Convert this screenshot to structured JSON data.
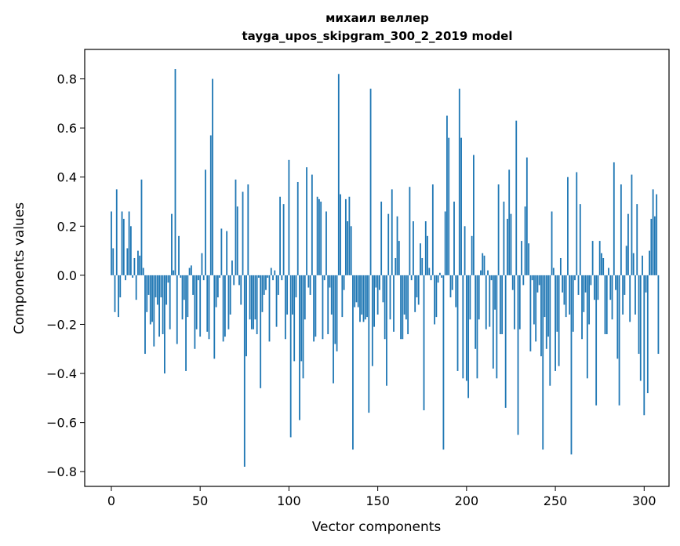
{
  "chart_data": {
    "type": "bar",
    "title_line1": "михаил веллер",
    "title_line2": "tayga_upos_skipgram_300_2_2019 model",
    "xlabel": "Vector components",
    "ylabel": "Components values",
    "xlim": [
      -15,
      314
    ],
    "ylim": [
      -0.86,
      0.92
    ],
    "xticks": [
      0,
      50,
      100,
      150,
      200,
      250,
      300
    ],
    "xtick_labels": [
      "0",
      "50",
      "100",
      "150",
      "200",
      "250",
      "300"
    ],
    "yticks": [
      -0.8,
      -0.6,
      -0.4,
      -0.2,
      0.0,
      0.2,
      0.4,
      0.6,
      0.8
    ],
    "ytick_labels": [
      "−0.8",
      "−0.6",
      "−0.4",
      "−0.2",
      "0.0",
      "0.2",
      "0.4",
      "0.6",
      "0.8"
    ],
    "bar_color": "#1f77b4",
    "grid": false,
    "values": [
      0.26,
      0.11,
      -0.15,
      0.35,
      -0.17,
      -0.09,
      0.26,
      0.23,
      -0.02,
      0.11,
      0.26,
      0.2,
      -0.01,
      0.07,
      -0.1,
      0.1,
      0.08,
      0.39,
      0.03,
      -0.32,
      -0.15,
      -0.08,
      -0.2,
      -0.19,
      -0.29,
      -0.09,
      -0.12,
      -0.25,
      -0.09,
      -0.24,
      -0.4,
      -0.12,
      -0.03,
      -0.22,
      0.25,
      0.02,
      0.84,
      -0.28,
      0.16,
      -0.01,
      -0.18,
      -0.1,
      -0.39,
      -0.17,
      0.03,
      0.04,
      -0.08,
      -0.3,
      -0.22,
      -0.02,
      -0.25,
      0.09,
      -0.02,
      0.43,
      -0.23,
      -0.26,
      0.57,
      0.8,
      -0.34,
      -0.13,
      -0.09,
      -0.01,
      0.19,
      -0.27,
      -0.25,
      0.18,
      -0.22,
      -0.16,
      0.06,
      -0.04,
      0.39,
      0.28,
      -0.04,
      -0.12,
      0.34,
      -0.78,
      -0.33,
      0.37,
      -0.18,
      -0.22,
      -0.22,
      -0.18,
      -0.24,
      -0.01,
      -0.46,
      -0.15,
      -0.08,
      -0.06,
      -0.01,
      -0.27,
      0.03,
      -0.02,
      0.02,
      -0.21,
      -0.08,
      0.32,
      -0.02,
      0.29,
      -0.26,
      -0.16,
      0.47,
      -0.66,
      -0.16,
      -0.35,
      -0.09,
      0.38,
      -0.59,
      -0.35,
      -0.42,
      -0.18,
      0.44,
      -0.05,
      -0.08,
      0.41,
      -0.27,
      -0.25,
      0.32,
      0.31,
      0.3,
      -0.26,
      -0.02,
      0.26,
      -0.24,
      -0.05,
      -0.16,
      -0.44,
      -0.28,
      -0.31,
      0.82,
      0.33,
      -0.17,
      -0.06,
      0.31,
      0.22,
      0.32,
      0.2,
      -0.71,
      -0.13,
      -0.11,
      -0.13,
      -0.19,
      -0.16,
      -0.19,
      -0.18,
      -0.17,
      -0.56,
      0.76,
      -0.37,
      -0.21,
      -0.05,
      -0.16,
      -0.06,
      0.3,
      -0.11,
      -0.26,
      -0.45,
      0.25,
      -0.18,
      0.35,
      -0.23,
      0.07,
      0.24,
      0.14,
      -0.26,
      -0.26,
      -0.16,
      -0.18,
      -0.24,
      0.36,
      -0.02,
      0.22,
      -0.15,
      -0.09,
      -0.12,
      0.13,
      0.07,
      -0.55,
      0.22,
      0.16,
      0.03,
      -0.02,
      0.37,
      -0.2,
      -0.17,
      -0.03,
      0.01,
      -0.01,
      -0.71,
      0.26,
      0.65,
      0.56,
      -0.09,
      -0.06,
      0.3,
      -0.13,
      -0.39,
      0.76,
      0.56,
      -0.42,
      0.2,
      -0.43,
      -0.5,
      -0.18,
      0.16,
      0.49,
      -0.3,
      -0.42,
      -0.18,
      0.02,
      0.09,
      0.08,
      -0.22,
      0.02,
      -0.21,
      -0.02,
      -0.38,
      -0.14,
      -0.42,
      0.37,
      -0.24,
      -0.24,
      0.3,
      -0.54,
      0.23,
      0.43,
      0.25,
      -0.06,
      -0.22,
      0.63,
      -0.65,
      -0.22,
      0.14,
      -0.04,
      0.28,
      0.48,
      0.13,
      -0.31,
      -0.02,
      -0.2,
      -0.27,
      -0.07,
      -0.04,
      -0.33,
      -0.71,
      -0.17,
      -0.3,
      -0.25,
      -0.45,
      0.26,
      0.03,
      -0.39,
      -0.23,
      -0.37,
      0.07,
      -0.07,
      -0.12,
      -0.17,
      0.4,
      -0.16,
      -0.73,
      -0.23,
      -0.02,
      0.42,
      -0.08,
      0.29,
      -0.26,
      -0.15,
      -0.07,
      -0.42,
      -0.2,
      -0.04,
      0.14,
      -0.1,
      -0.53,
      -0.1,
      0.14,
      0.09,
      0.07,
      -0.24,
      -0.24,
      0.03,
      -0.1,
      -0.18,
      0.46,
      -0.06,
      -0.34,
      -0.53,
      0.37,
      -0.16,
      -0.08,
      0.12,
      0.25,
      -0.19,
      0.41,
      0.09,
      -0.16,
      0.29,
      -0.32,
      -0.43,
      0.08,
      -0.57,
      -0.07,
      -0.48,
      0.1,
      0.23,
      0.35,
      0.24,
      0.33,
      -0.32
    ]
  }
}
